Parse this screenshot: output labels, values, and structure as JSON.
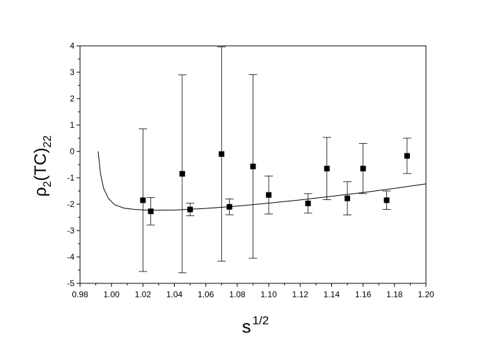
{
  "chart_data": {
    "type": "scatter",
    "title": "",
    "xlabel_base": "s",
    "xlabel_sup": "1/2",
    "ylabel_rho": "ρ",
    "ylabel_sub1": "2",
    "ylabel_mid": "(TC)",
    "ylabel_sub2": "22",
    "xlim": [
      0.98,
      1.2
    ],
    "ylim": [
      -5,
      4
    ],
    "x_ticks": [
      0.98,
      1.0,
      1.02,
      1.04,
      1.06,
      1.08,
      1.1,
      1.12,
      1.14,
      1.16,
      1.18,
      1.2
    ],
    "x_tick_labels": [
      "0.98",
      "1.00",
      "1.02",
      "1.04",
      "1.06",
      "1.08",
      "1.10",
      "1.12",
      "1.14",
      "1.16",
      "1.18",
      "1.20"
    ],
    "y_ticks": [
      -5,
      -4,
      -3,
      -2,
      -1,
      0,
      1,
      2,
      3,
      4
    ],
    "y_tick_labels": [
      "-5",
      "-4",
      "-3",
      "-2",
      "-1",
      "0",
      "1",
      "2",
      "3",
      "4"
    ],
    "grid": false,
    "points": [
      {
        "x": 1.02,
        "y": -1.85,
        "err": 2.7
      },
      {
        "x": 1.025,
        "y": -2.27,
        "err": 0.52
      },
      {
        "x": 1.045,
        "y": -0.85,
        "err": 3.75
      },
      {
        "x": 1.05,
        "y": -2.2,
        "err": 0.24
      },
      {
        "x": 1.07,
        "y": -0.1,
        "err": 4.06
      },
      {
        "x": 1.075,
        "y": -2.1,
        "err": 0.3
      },
      {
        "x": 1.09,
        "y": -0.57,
        "err": 3.48
      },
      {
        "x": 1.1,
        "y": -1.65,
        "err": 0.72
      },
      {
        "x": 1.125,
        "y": -1.97,
        "err": 0.37
      },
      {
        "x": 1.137,
        "y": -0.65,
        "err": 1.18
      },
      {
        "x": 1.15,
        "y": -1.78,
        "err": 0.63
      },
      {
        "x": 1.16,
        "y": -0.65,
        "err": 0.95
      },
      {
        "x": 1.175,
        "y": -1.85,
        "err": 0.35
      },
      {
        "x": 1.188,
        "y": -0.17,
        "err": 0.67
      }
    ],
    "curve": {
      "x": [
        0.9915,
        0.993,
        0.995,
        0.998,
        1.002,
        1.008,
        1.015,
        1.025,
        1.04,
        1.06,
        1.08,
        1.1,
        1.12,
        1.14,
        1.16,
        1.18,
        1.2
      ],
      "y": [
        0.0,
        -0.85,
        -1.4,
        -1.78,
        -2.02,
        -2.15,
        -2.2,
        -2.23,
        -2.22,
        -2.16,
        -2.07,
        -1.96,
        -1.84,
        -1.7,
        -1.56,
        -1.4,
        -1.23
      ]
    }
  }
}
